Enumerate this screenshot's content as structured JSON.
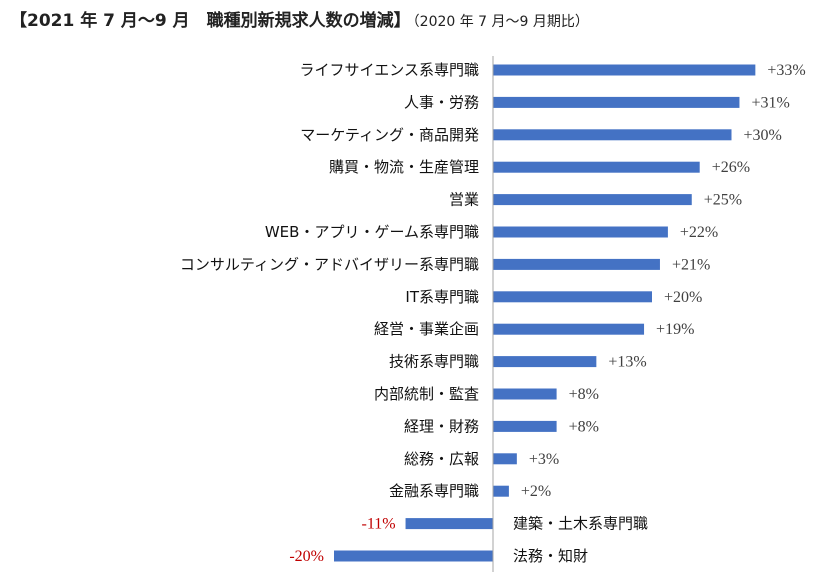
{
  "chart_data": {
    "type": "bar",
    "orientation": "horizontal",
    "title": "【2021 年 7 月～9 月　職種別新規求人数の増減】",
    "subtitle": "（2020 年 7 月～9 月期比）",
    "categories": [
      "ライフサイエンス系専門職",
      "人事・労務",
      "マーケティング・商品開発",
      "購買・物流・生産管理",
      "営業",
      "WEB・アプリ・ゲーム系専門職",
      "コンサルティング・アドバイザリー系専門職",
      "IT系専門職",
      "経営・事業企画",
      "技術系専門職",
      "内部統制・監査",
      "経理・財務",
      "総務・広報",
      "金融系専門職",
      "建築・土木系専門職",
      "法務・知財"
    ],
    "values": [
      33,
      31,
      30,
      26,
      25,
      22,
      21,
      20,
      19,
      13,
      8,
      8,
      3,
      2,
      -11,
      -20
    ],
    "value_labels": [
      "+33%",
      "+31%",
      "+30%",
      "+26%",
      "+25%",
      "+22%",
      "+21%",
      "+20%",
      "+19%",
      "+13%",
      "+8%",
      "+8%",
      "+3%",
      "+2%",
      "-11%",
      "-20%"
    ],
    "unit": "%",
    "grid": false,
    "legend": "none",
    "colors": {
      "bar": "#4472C4",
      "positive_label": "#404040",
      "negative_label": "#C00000",
      "axis": "#A6A6A6"
    }
  }
}
